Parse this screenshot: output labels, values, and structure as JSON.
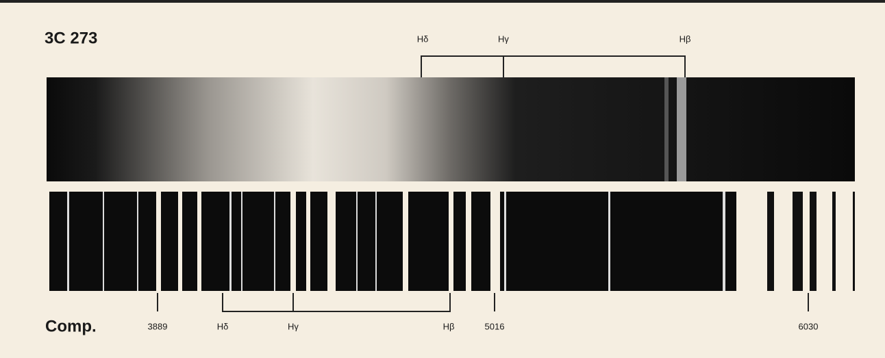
{
  "title": "3C 273",
  "quasar_lines": [
    "Hδ",
    "Hγ",
    "Hβ"
  ],
  "comparison": {
    "label": "Comp.",
    "lines": [
      "3889",
      "Hδ",
      "Hγ",
      "Hβ",
      "5016",
      "6030"
    ]
  }
}
